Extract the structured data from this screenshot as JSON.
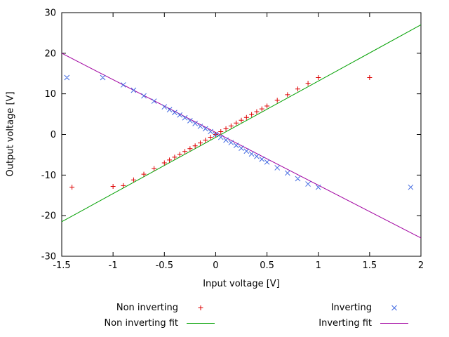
{
  "chart_data": {
    "type": "scatter",
    "title": "",
    "xlabel": "Input voltage [V]",
    "ylabel": "Output voltage [V]",
    "xlim": [
      -1.5,
      2
    ],
    "ylim": [
      -30,
      30
    ],
    "xtick_values": [
      -1.5,
      -1,
      -0.5,
      0,
      0.5,
      1,
      1.5,
      2
    ],
    "xtick_labels": [
      "-1.5",
      "-1",
      "-0.5",
      "0",
      "0.5",
      "1",
      "1.5",
      "2"
    ],
    "ytick_values": [
      -30,
      -20,
      -10,
      0,
      10,
      20,
      30
    ],
    "ytick_labels": [
      "-30",
      "-20",
      "-10",
      "0",
      "10",
      "20",
      "30"
    ],
    "grid": false,
    "legend_position": "below",
    "axis_color": "#000000",
    "background_color": "#ffffff",
    "series": [
      {
        "name": "Non inverting",
        "type": "points",
        "marker": "plus",
        "color": "#dd0000",
        "points": [
          [
            -1.4,
            -13
          ],
          [
            -1.0,
            -12.8
          ],
          [
            -0.9,
            -12.6
          ],
          [
            -0.8,
            -11.2
          ],
          [
            -0.7,
            -9.8
          ],
          [
            -0.6,
            -8.4
          ],
          [
            -0.5,
            -7.0
          ],
          [
            -0.45,
            -6.3
          ],
          [
            -0.4,
            -5.6
          ],
          [
            -0.35,
            -4.9
          ],
          [
            -0.3,
            -4.2
          ],
          [
            -0.25,
            -3.5
          ],
          [
            -0.2,
            -2.8
          ],
          [
            -0.15,
            -2.1
          ],
          [
            -0.1,
            -1.4
          ],
          [
            -0.05,
            -0.7
          ],
          [
            0,
            0
          ],
          [
            0.05,
            0.7
          ],
          [
            0.1,
            1.4
          ],
          [
            0.15,
            2.1
          ],
          [
            0.2,
            2.8
          ],
          [
            0.25,
            3.5
          ],
          [
            0.3,
            4.2
          ],
          [
            0.35,
            4.9
          ],
          [
            0.4,
            5.6
          ],
          [
            0.45,
            6.3
          ],
          [
            0.5,
            7.0
          ],
          [
            0.6,
            8.4
          ],
          [
            0.7,
            9.8
          ],
          [
            0.8,
            11.2
          ],
          [
            0.9,
            12.6
          ],
          [
            1.0,
            14.0
          ],
          [
            1.5,
            14.0
          ]
        ]
      },
      {
        "name": "Inverting",
        "type": "points",
        "marker": "cross",
        "color": "#4169e1",
        "points": [
          [
            -1.45,
            14
          ],
          [
            -1.1,
            14
          ],
          [
            -0.9,
            12.2
          ],
          [
            -0.8,
            10.9
          ],
          [
            -0.7,
            9.5
          ],
          [
            -0.6,
            8.2
          ],
          [
            -0.5,
            6.8
          ],
          [
            -0.45,
            6.1
          ],
          [
            -0.4,
            5.4
          ],
          [
            -0.35,
            4.8
          ],
          [
            -0.3,
            4.1
          ],
          [
            -0.25,
            3.4
          ],
          [
            -0.2,
            2.7
          ],
          [
            -0.15,
            2.0
          ],
          [
            -0.1,
            1.4
          ],
          [
            -0.05,
            0.7
          ],
          [
            0,
            0
          ],
          [
            0.05,
            -0.7
          ],
          [
            0.1,
            -1.4
          ],
          [
            0.15,
            -2.0
          ],
          [
            0.2,
            -2.7
          ],
          [
            0.25,
            -3.4
          ],
          [
            0.3,
            -4.1
          ],
          [
            0.35,
            -4.8
          ],
          [
            0.4,
            -5.4
          ],
          [
            0.45,
            -6.1
          ],
          [
            0.5,
            -6.8
          ],
          [
            0.6,
            -8.2
          ],
          [
            0.7,
            -9.5
          ],
          [
            0.8,
            -10.9
          ],
          [
            0.9,
            -12.2
          ],
          [
            1.0,
            -13.0
          ],
          [
            1.9,
            -13.0
          ]
        ]
      },
      {
        "name": "Non inverting fit",
        "type": "line",
        "color": "#00a000",
        "points": [
          [
            -1.5,
            -21.5
          ],
          [
            2,
            27
          ]
        ]
      },
      {
        "name": "Inverting fit",
        "type": "line",
        "color": "#a000a0",
        "points": [
          [
            -1.5,
            20
          ],
          [
            2,
            -25.5
          ]
        ]
      }
    ]
  }
}
